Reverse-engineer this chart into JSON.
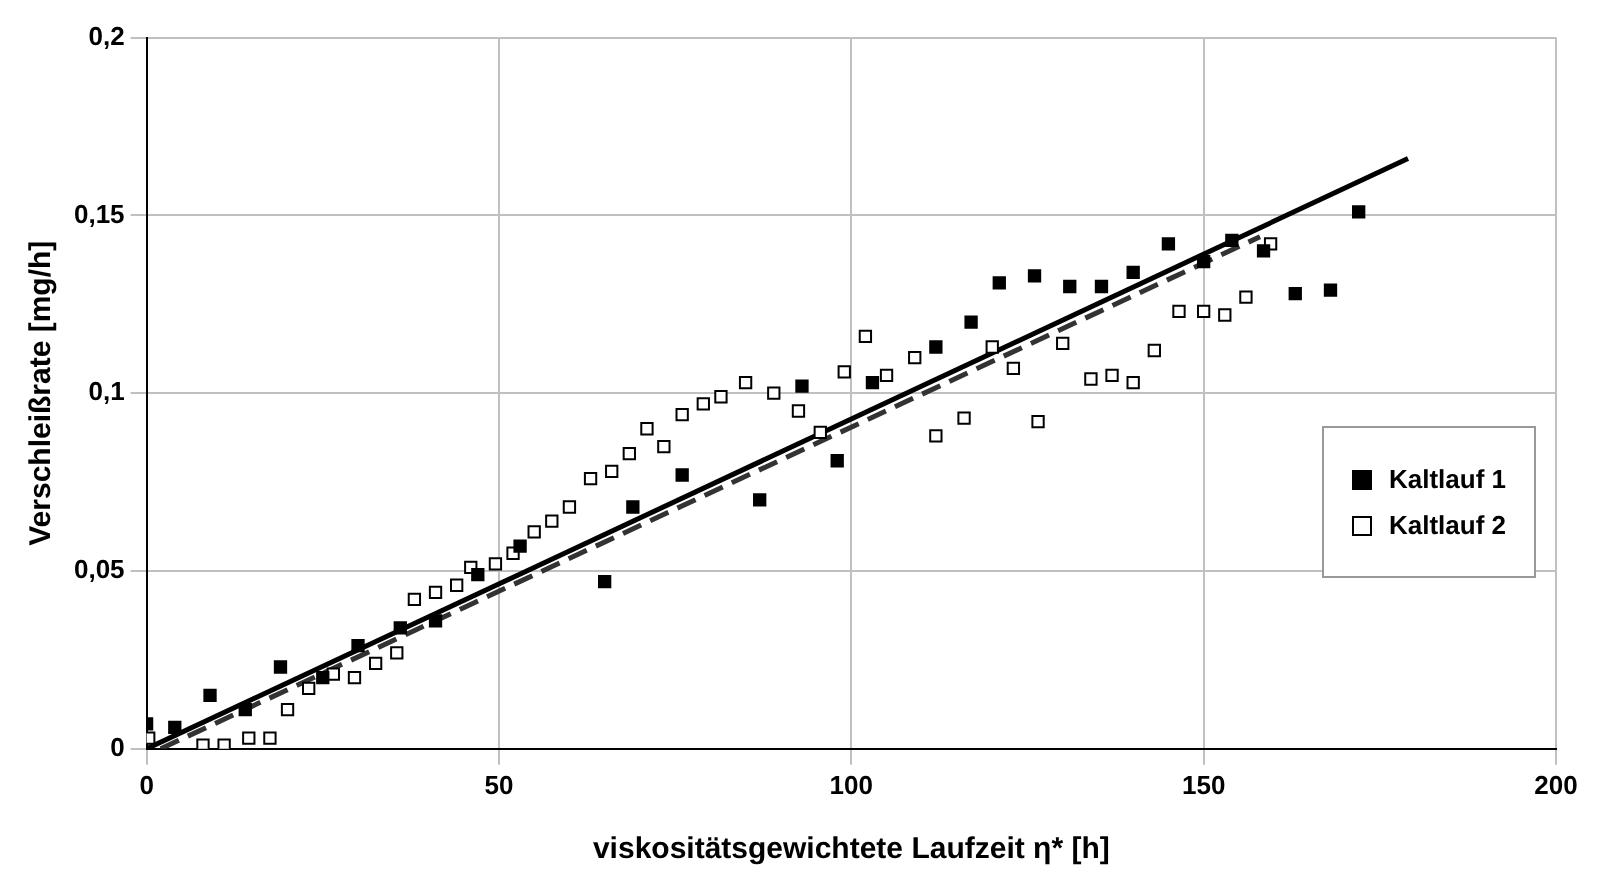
{
  "chart_data": {
    "type": "scatter",
    "xlabel": "viskositätsgewichtete Laufzeit η* [h]",
    "ylabel": "Verschleißrate [mg/h]",
    "xlim": [
      0,
      200
    ],
    "xticks": [
      0,
      50,
      100,
      150,
      200
    ],
    "ylim": [
      0,
      0.2
    ],
    "yticks": [
      0,
      {
        "value": 0.05,
        "label": "0,05"
      },
      {
        "value": 0.1,
        "label": "0,1"
      },
      {
        "value": 0.15,
        "label": "0,15"
      },
      {
        "value": 0.2,
        "label": "0,2"
      }
    ],
    "grid": true,
    "legend": "right",
    "marker": "square",
    "series": [
      {
        "name": "Kaltlauf 1",
        "color": "#000000",
        "x": [
          0,
          4,
          9,
          14,
          19,
          25,
          30,
          36,
          41,
          47,
          53,
          65,
          69,
          76,
          87,
          93,
          98,
          103,
          112,
          117,
          121,
          126,
          131,
          135.5,
          140,
          145,
          150,
          154,
          158.5,
          163,
          168,
          172
        ],
        "values": [
          0.007,
          0.006,
          0.015,
          0.011,
          0.023,
          0.02,
          0.029,
          0.034,
          0.036,
          0.049,
          0.057,
          0.047,
          0.068,
          0.077,
          0.07,
          0.102,
          0.081,
          0.103,
          0.113,
          0.12,
          0.131,
          0.133,
          0.13,
          0.13,
          0.134,
          0.142,
          0.137,
          0.143,
          0.14,
          0.128,
          0.129,
          0.151
        ]
      },
      {
        "name": "Kaltlauf 2",
        "color": "#ffffff",
        "x": [
          0.3,
          8,
          11,
          14.5,
          17.5,
          20,
          23,
          26.5,
          29.5,
          32.5,
          35.5,
          38,
          41,
          44,
          46,
          49.5,
          52,
          55,
          57.5,
          60,
          63,
          66,
          68.5,
          71,
          73.4,
          76,
          79,
          81.5,
          85,
          89,
          92.5,
          95.6,
          99,
          102,
          105,
          109,
          112,
          116,
          120,
          123,
          126.5,
          130,
          134,
          137,
          140,
          143,
          146.5,
          150,
          153,
          156,
          159.5
        ],
        "values": [
          0.003,
          0.001,
          0.001,
          0.003,
          0.003,
          0.011,
          0.017,
          0.021,
          0.02,
          0.024,
          0.027,
          0.042,
          0.044,
          0.046,
          0.051,
          0.052,
          0.055,
          0.061,
          0.064,
          0.068,
          0.076,
          0.078,
          0.083,
          0.09,
          0.085,
          0.094,
          0.097,
          0.099,
          0.103,
          0.1,
          0.095,
          0.089,
          0.106,
          0.116,
          0.105,
          0.11,
          0.088,
          0.093,
          0.113,
          0.107,
          0.092,
          0.114,
          0.104,
          0.105,
          0.103,
          0.112,
          0.123,
          0.123,
          0.122,
          0.127,
          0.142
        ]
      },
      {
        "type": "line",
        "color": "#000000",
        "line_style": "solid",
        "marker": "none",
        "x": [
          0,
          179
        ],
        "values": [
          0,
          0.166
        ]
      },
      {
        "type": "line",
        "color": "#333333",
        "line_style": "dashed",
        "marker": "none",
        "x": [
          2,
          158
        ],
        "values": [
          0,
          0.144
        ]
      }
    ]
  }
}
